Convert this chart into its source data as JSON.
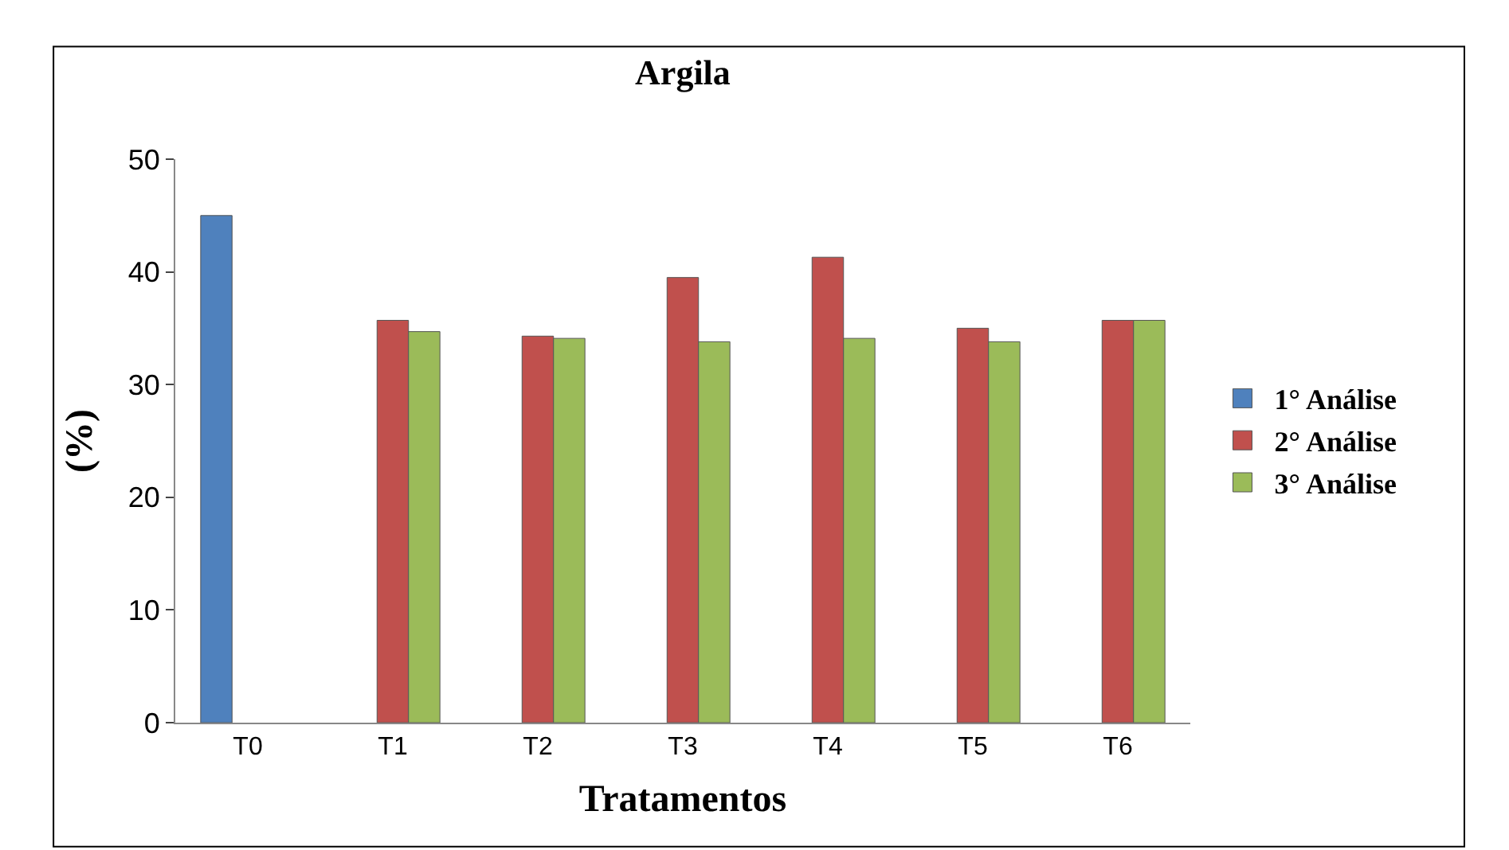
{
  "chart_data": {
    "type": "bar",
    "title": "Argila",
    "xlabel": "Tratamentos",
    "ylabel": "(%)",
    "categories": [
      "T0",
      "T1",
      "T2",
      "T3",
      "T4",
      "T5",
      "T6"
    ],
    "series": [
      {
        "name": "1° Análise",
        "color": "#4f81bd",
        "values": [
          45,
          null,
          null,
          null,
          null,
          null,
          null
        ]
      },
      {
        "name": "2° Análise",
        "color": "#c0504d",
        "values": [
          null,
          35.7,
          34.3,
          39.5,
          41.3,
          35,
          35.7
        ]
      },
      {
        "name": "3° Análise",
        "color": "#9bbb59",
        "values": [
          null,
          34.7,
          34.1,
          33.8,
          34.1,
          33.8,
          35.7
        ]
      }
    ],
    "ylim": [
      0,
      50
    ],
    "yticks": [
      0,
      10,
      20,
      30,
      40,
      50
    ],
    "legend": "right"
  }
}
